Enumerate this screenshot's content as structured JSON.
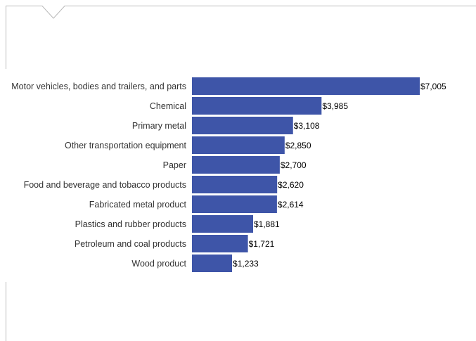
{
  "chart_data": {
    "type": "bar",
    "orientation": "horizontal",
    "title": "",
    "xlabel": "",
    "ylabel": "",
    "categories": [
      "Motor vehicles, bodies and trailers, and parts",
      "Chemical",
      "Primary metal",
      "Other transportation equipment",
      "Paper",
      "Food and beverage and tobacco products",
      "Fabricated metal product",
      "Plastics and rubber products",
      "Petroleum and coal products",
      "Wood product"
    ],
    "values": [
      7005,
      3985,
      3108,
      2850,
      2700,
      2620,
      2614,
      1881,
      1721,
      1233
    ],
    "value_labels": [
      "$7,005",
      "$3,985",
      "$3,108",
      "$2,850",
      "$2,700",
      "$2,620",
      "$2,614",
      "$1,881",
      "$1,721",
      "$1,233"
    ],
    "xlim": [
      0,
      7005
    ],
    "grid": false,
    "legend": "none",
    "bar_color": "#3e55a8"
  },
  "frame": {
    "border_color": "#b9b9b9"
  }
}
